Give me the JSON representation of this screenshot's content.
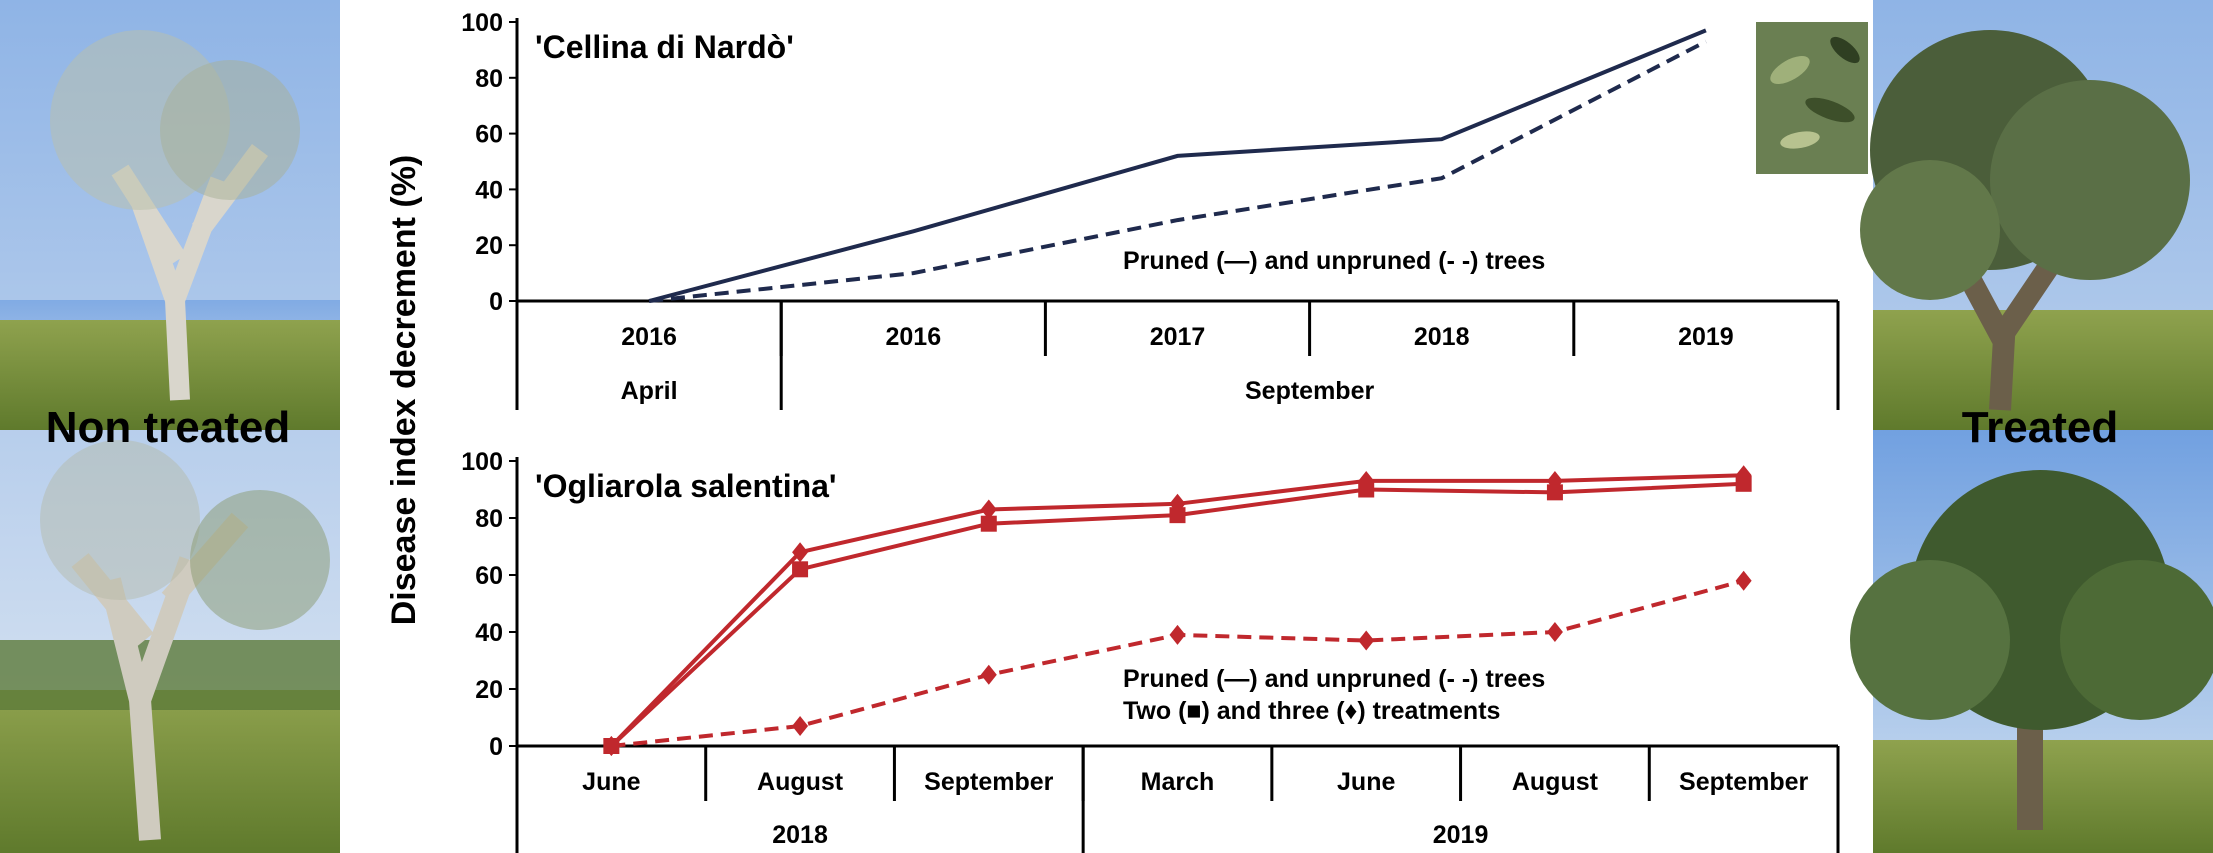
{
  "figure": {
    "ylabel": "Disease index decrement (%)",
    "left_label": "Non treated",
    "right_label": "Treated"
  },
  "chart_data": [
    {
      "type": "line",
      "title": "'Cellina di Nardò'",
      "ylim": [
        0,
        100
      ],
      "yticks": [
        0,
        20,
        40,
        60,
        80,
        100
      ],
      "categories": [
        "2016",
        "2016",
        "2017",
        "2018",
        "2019"
      ],
      "category_groups": [
        {
          "label": "April",
          "span": 1
        },
        {
          "label": "September",
          "span": 4
        }
      ],
      "series": [
        {
          "style": "solid",
          "color": "#1f2a4d",
          "values": [
            0,
            25,
            52,
            58,
            97
          ]
        },
        {
          "style": "dashed",
          "color": "#1f2a4d",
          "values": [
            0,
            10,
            29,
            44,
            93
          ]
        }
      ],
      "annotation": "Pruned (—) and unpruned (- -) trees",
      "grid": false
    },
    {
      "type": "line",
      "title": "'Ogliarola salentina'",
      "ylim": [
        0,
        100
      ],
      "yticks": [
        0,
        20,
        40,
        60,
        80,
        100
      ],
      "categories": [
        "June",
        "August",
        "September",
        "March",
        "June",
        "August",
        "September"
      ],
      "category_groups": [
        {
          "label": "2018",
          "span": 3
        },
        {
          "label": "2019",
          "span": 4
        }
      ],
      "series": [
        {
          "style": "solid",
          "marker": "diamond",
          "color": "#c0282d",
          "values": [
            0,
            68,
            83,
            85,
            93,
            93,
            95
          ]
        },
        {
          "style": "solid",
          "marker": "square",
          "color": "#c0282d",
          "values": [
            0,
            62,
            78,
            81,
            90,
            89,
            92
          ]
        },
        {
          "style": "dashed",
          "marker": "diamond",
          "color": "#c0282d",
          "values": [
            0,
            7,
            25,
            39,
            37,
            40,
            58
          ]
        }
      ],
      "annotations": [
        "Pruned (—) and unpruned (- -) trees",
        "Two (■) and three (♦) treatments"
      ],
      "grid": false
    }
  ]
}
